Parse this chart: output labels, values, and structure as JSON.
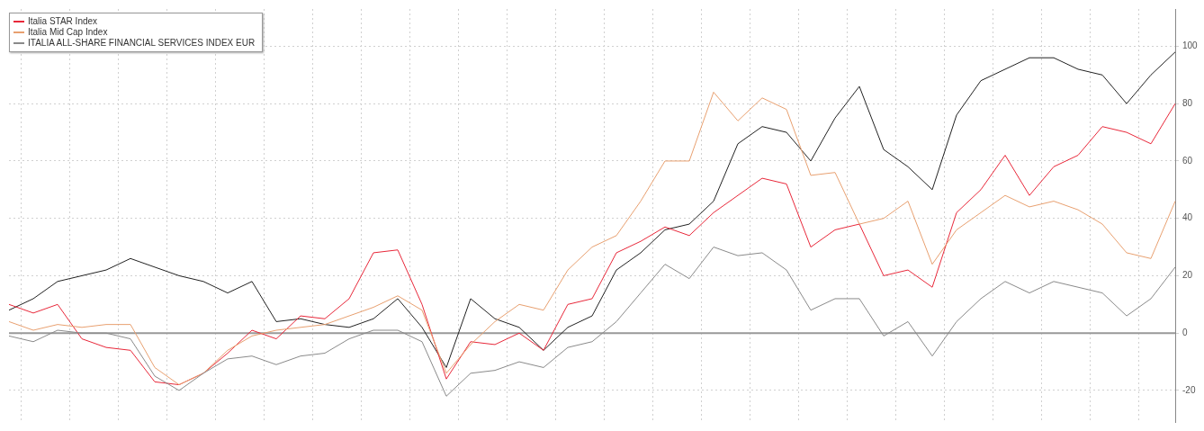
{
  "chart_data": {
    "type": "line",
    "categories": [
      null,
      null,
      null,
      null,
      null,
      null,
      null,
      null,
      null,
      null,
      null,
      null,
      null,
      null,
      null,
      null,
      null,
      null,
      null,
      null,
      null,
      null,
      null,
      null,
      null,
      null,
      null,
      null,
      null,
      null,
      null,
      null,
      null,
      null,
      null,
      null,
      null,
      null,
      null,
      null,
      null,
      null,
      null,
      null,
      null,
      null,
      null,
      null,
      null
    ],
    "series": [
      {
        "color": "#222222",
        "values": [
          8,
          12,
          18,
          20,
          22,
          26,
          23,
          20,
          18,
          14,
          18,
          4,
          5,
          3,
          2,
          5,
          12,
          2,
          -12,
          12,
          5,
          2,
          -6,
          2,
          6,
          22,
          28,
          36,
          38,
          46,
          66,
          72,
          70,
          60,
          75,
          86,
          64,
          58,
          50,
          76,
          88,
          92,
          96,
          96,
          92,
          90,
          80,
          90,
          98
        ]
      },
      {
        "name": "Italia STAR Index",
        "color": "#e8283a",
        "values": [
          10,
          7,
          10,
          -2,
          -5,
          -6,
          -17,
          -18,
          -14,
          -7,
          1,
          -2,
          6,
          5,
          12,
          28,
          29,
          10,
          -16,
          -3,
          -4,
          0,
          -6,
          10,
          12,
          28,
          32,
          37,
          34,
          42,
          48,
          54,
          52,
          30,
          36,
          38,
          20,
          22,
          16,
          42,
          50,
          62,
          48,
          58,
          62,
          72,
          70,
          66,
          80
        ]
      },
      {
        "name": "Italia Mid Cap Index",
        "color": "#e8a070",
        "values": [
          4,
          1,
          3,
          2,
          3,
          3,
          -12,
          -18,
          -14,
          -6,
          -1,
          1,
          2,
          3,
          6,
          9,
          13,
          8,
          -14,
          -4,
          4,
          10,
          8,
          22,
          30,
          34,
          46,
          60,
          60,
          84,
          74,
          82,
          78,
          55,
          56,
          38,
          40,
          46,
          24,
          36,
          42,
          48,
          44,
          46,
          43,
          38,
          28,
          26,
          46
        ]
      },
      {
        "name": "ITALIA ALL-SHARE FINANCIAL SERVICES INDEX EUR",
        "color": "#8a8a8a",
        "values": [
          -1,
          -3,
          1,
          0,
          0,
          -2,
          -15,
          -20,
          -14,
          -9,
          -8,
          -11,
          -8,
          -7,
          -2,
          1,
          1,
          -3,
          -22,
          -14,
          -13,
          -10,
          -12,
          -5,
          -3,
          4,
          14,
          24,
          19,
          30,
          27,
          28,
          22,
          8,
          12,
          12,
          -1,
          4,
          -8,
          4,
          12,
          18,
          14,
          18,
          16,
          14,
          6,
          12,
          23
        ]
      }
    ],
    "ylim": [
      -31,
      113
    ],
    "yticks": [
      {
        "value": -20,
        "label": "-20"
      },
      {
        "value": 0,
        "label": "0"
      },
      {
        "value": 20,
        "label": "20"
      },
      {
        "value": 40,
        "label": "40"
      },
      {
        "value": 60,
        "label": "60"
      },
      {
        "value": 80,
        "label": "80"
      },
      {
        "value": 100,
        "label": "100"
      }
    ],
    "ref_lines": [
      {
        "axis": "y",
        "value": 0,
        "color": "#999999"
      }
    ],
    "grid": true,
    "legend": "top left",
    "tick_labels": "y",
    "marker": "none",
    "line_style": "solid"
  }
}
